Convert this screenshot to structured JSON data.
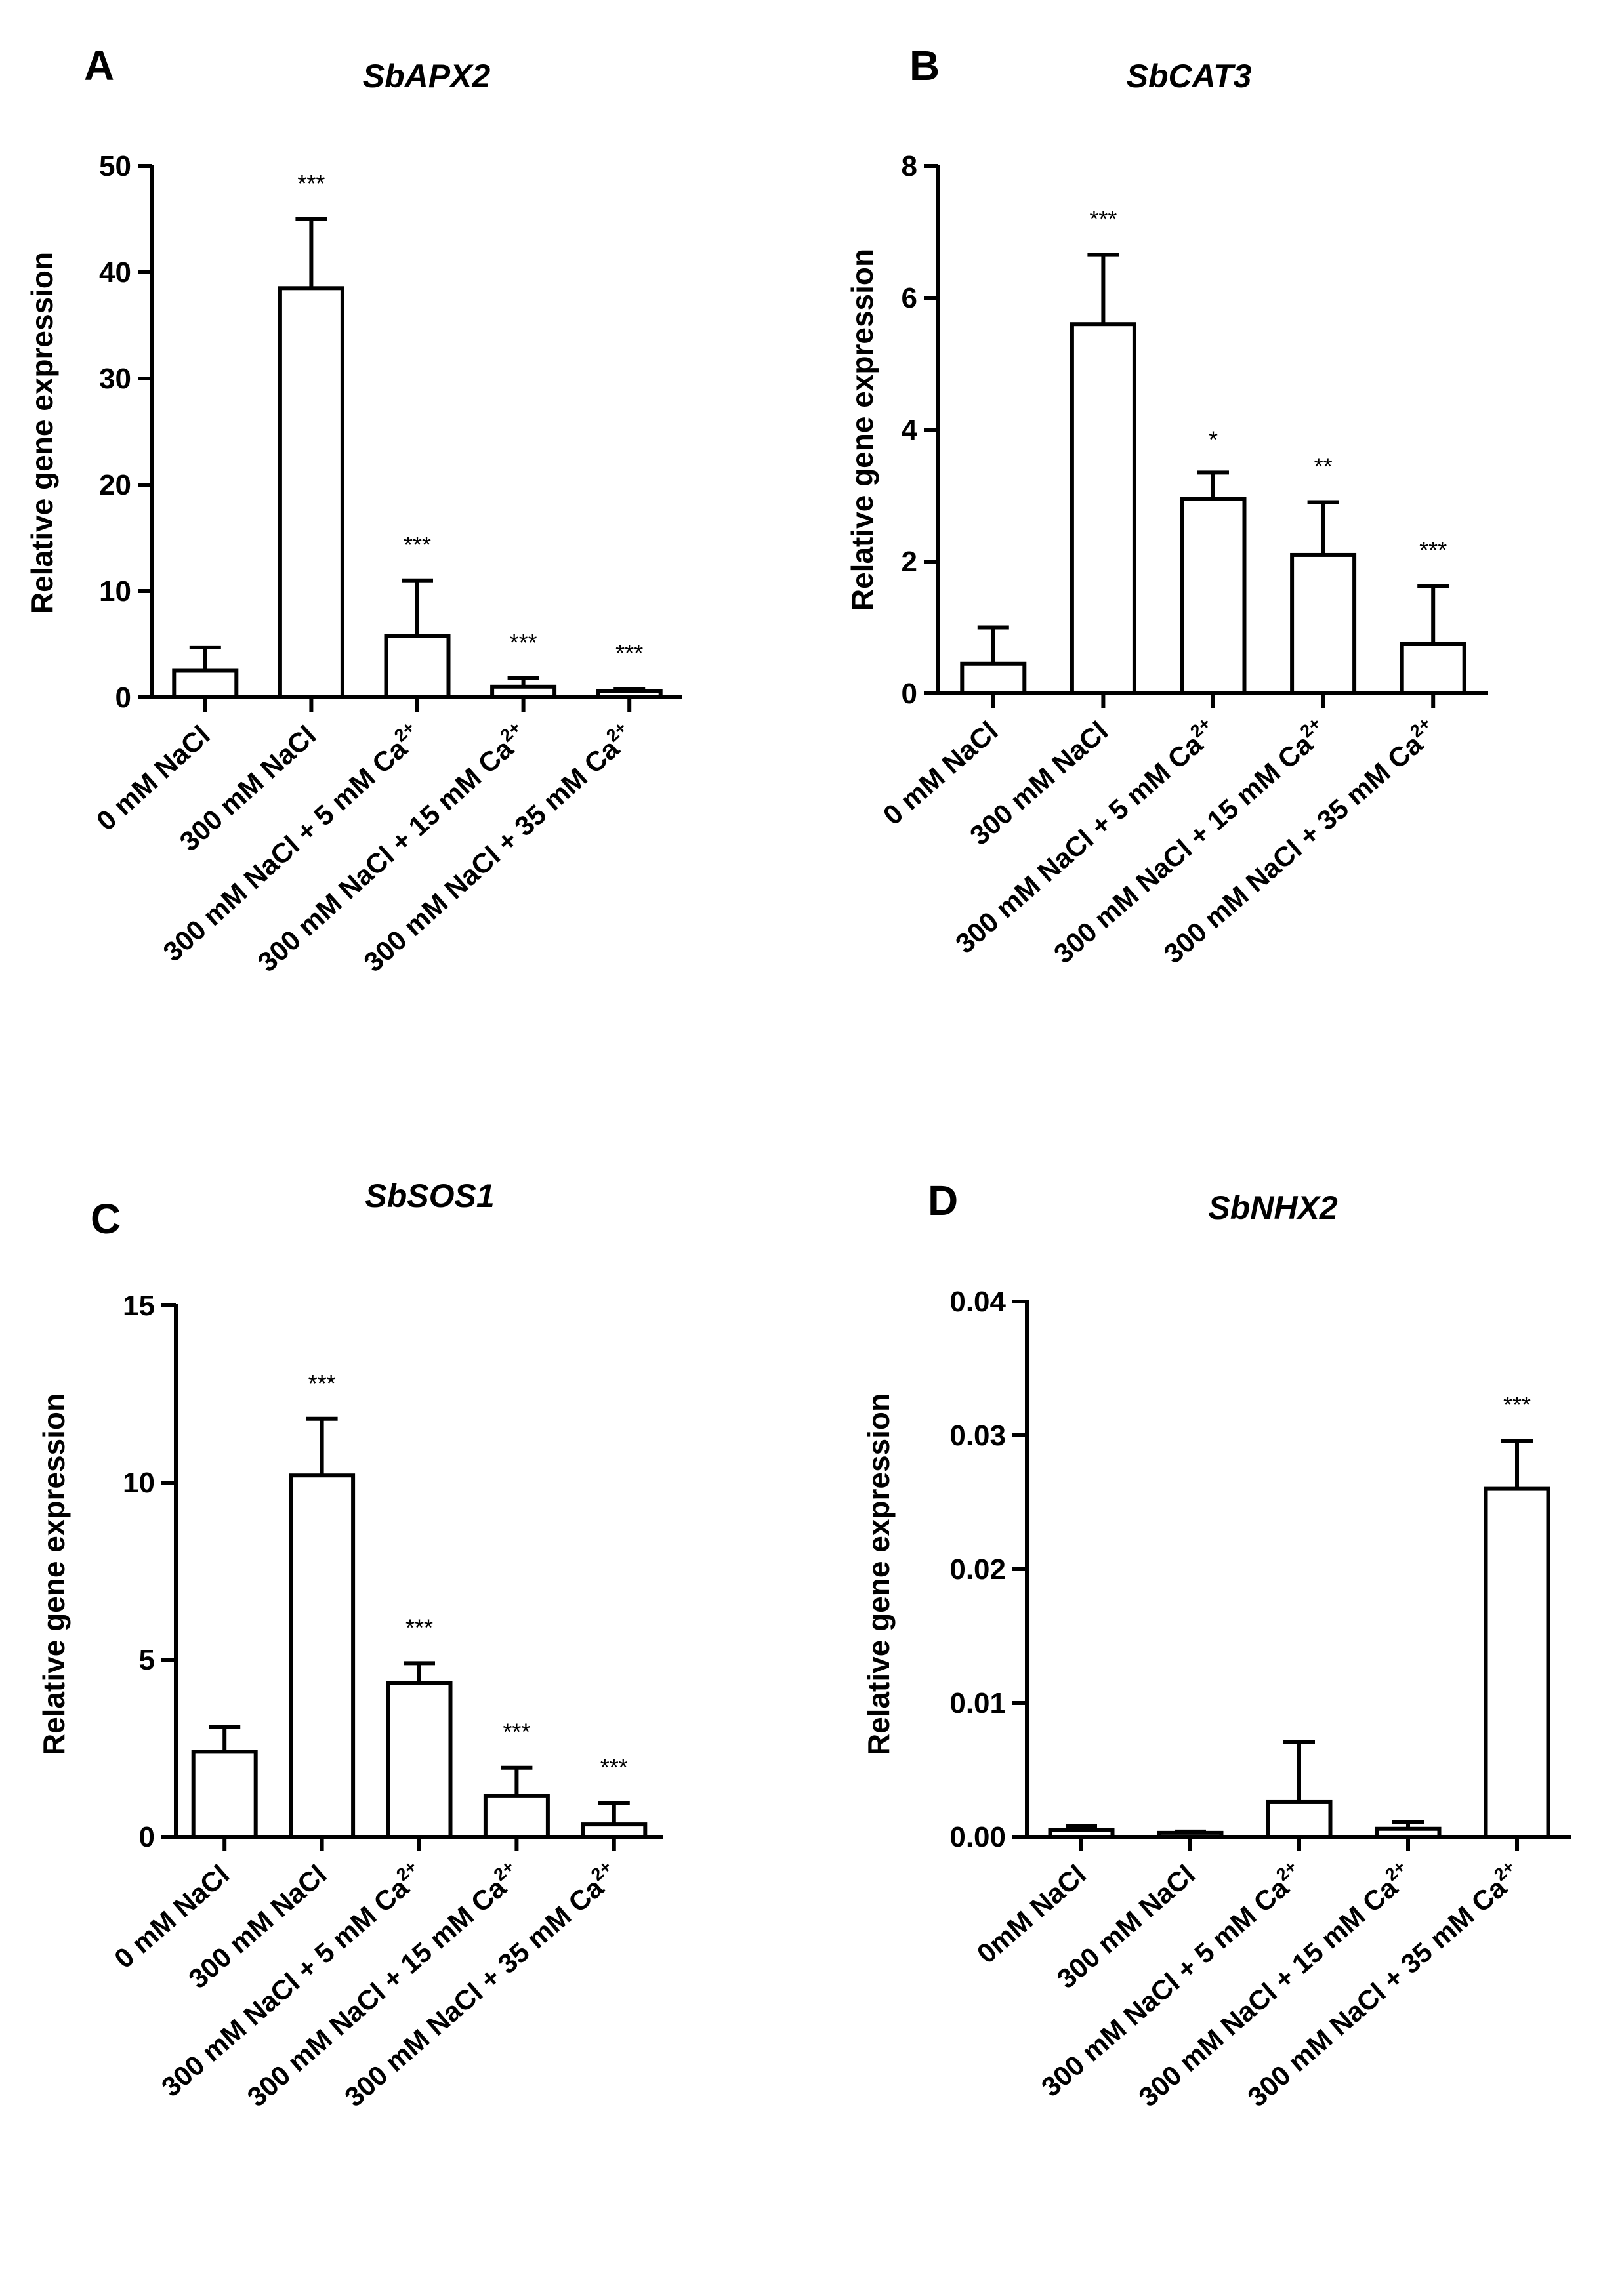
{
  "chart_data": [
    {
      "panel": "A",
      "type": "bar",
      "title": "SbAPX2",
      "ylabel": "Relative gene expression",
      "xlabel": "",
      "ylim": [
        0,
        50
      ],
      "yticks": [
        0,
        10,
        20,
        30,
        40,
        50
      ],
      "ytick_labels": [
        "0",
        "10",
        "20",
        "30",
        "40",
        "50"
      ],
      "categories": [
        "0 mM NaCl",
        "300 mM NaCl",
        "300 mM NaCl + 5 mM Ca",
        "300 mM NaCl + 15 mM Ca",
        "300 mM NaCl + 35 mM Ca"
      ],
      "category_superscripts": [
        "",
        "",
        "2+",
        "2+",
        "2+"
      ],
      "values": [
        2.5,
        38.5,
        5.8,
        1.0,
        0.6
      ],
      "errors": [
        2.2,
        6.5,
        5.2,
        0.8,
        0.2
      ],
      "significance": [
        "",
        "***",
        "***",
        "***",
        "***"
      ]
    },
    {
      "panel": "B",
      "type": "bar",
      "title": "SbCAT3",
      "ylabel": "Relative gene expression",
      "xlabel": "",
      "ylim": [
        0,
        8
      ],
      "yticks": [
        0,
        2,
        4,
        6,
        8
      ],
      "ytick_labels": [
        "0",
        "2",
        "4",
        "6",
        "8"
      ],
      "categories": [
        "0 mM NaCl",
        "300 mM NaCl",
        "300 mM NaCl + 5 mM Ca",
        "300 mM NaCl + 15 mM Ca",
        "300 mM NaCl + 35 mM Ca"
      ],
      "category_superscripts": [
        "",
        "",
        "2+",
        "2+",
        "2+"
      ],
      "values": [
        0.45,
        5.6,
        2.95,
        2.1,
        0.75
      ],
      "errors": [
        0.55,
        1.05,
        0.4,
        0.8,
        0.88
      ],
      "significance": [
        "",
        "***",
        "*",
        "**",
        "***"
      ]
    },
    {
      "panel": "C",
      "type": "bar",
      "title": "SbSOS1",
      "ylabel": "Relative gene expression",
      "xlabel": "",
      "ylim": [
        0,
        15
      ],
      "yticks": [
        0,
        5,
        10,
        15
      ],
      "ytick_labels": [
        "0",
        "5",
        "10",
        "15"
      ],
      "categories": [
        "0 mM NaCl",
        "300 mM NaCl",
        "300 mM NaCl + 5 mM Ca",
        "300 mM NaCl + 15 mM Ca",
        "300 mM NaCl + 35 mM Ca"
      ],
      "category_superscripts": [
        "",
        "",
        "2+",
        "2+",
        "2+"
      ],
      "values": [
        2.4,
        10.2,
        4.35,
        1.15,
        0.35
      ],
      "errors": [
        0.7,
        1.6,
        0.55,
        0.8,
        0.6
      ],
      "significance": [
        "",
        "***",
        "***",
        "***",
        "***"
      ]
    },
    {
      "panel": "D",
      "type": "bar",
      "title": "SbNHX2",
      "ylabel": "Relative gene expression",
      "xlabel": "",
      "ylim": [
        0,
        0.04
      ],
      "yticks": [
        0,
        0.01,
        0.02,
        0.03,
        0.04
      ],
      "ytick_labels": [
        "0.00",
        "0.01",
        "0.02",
        "0.03",
        "0.04"
      ],
      "categories": [
        "0mM NaCl",
        "300 mM NaCl",
        "300 mM NaCl + 5 mM Ca",
        "300 mM NaCl + 15 mM Ca",
        "300 mM NaCl + 35 mM Ca"
      ],
      "category_superscripts": [
        "",
        "",
        "2+",
        "2+",
        "2+"
      ],
      "values": [
        0.0005,
        0.0003,
        0.0026,
        0.0006,
        0.026
      ],
      "errors": [
        0.0003,
        0.0001,
        0.0045,
        0.0005,
        0.0036
      ],
      "significance": [
        "",
        "",
        "",
        "",
        "***"
      ]
    }
  ]
}
